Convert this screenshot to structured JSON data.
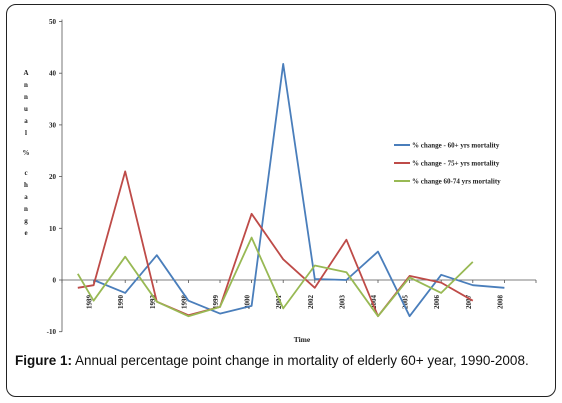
{
  "figure": {
    "caption_label": "Figure 1:",
    "caption_text": " Annual percentage point change in mortality of elderly 60+ year, 1990-2008."
  },
  "chart_data": {
    "type": "line",
    "title": "",
    "xlabel": "Time",
    "ylabel": "Annual % change",
    "ylim": [
      -10,
      50
    ],
    "yticks": [
      50,
      40,
      30,
      20,
      10,
      0,
      -10
    ],
    "x_tick_labels": [
      "1989",
      "1990",
      "1993",
      "1998",
      "1999",
      "2000",
      "2001",
      "2002",
      "2003",
      "2004",
      "2005",
      "2006",
      "2007",
      "2008"
    ],
    "legend_position": "right",
    "grid": false,
    "series": [
      {
        "name": "% change - 60+ yrs mortality",
        "color": "#4a7ebb",
        "x": [
          1,
          2,
          3,
          4,
          5,
          6,
          7,
          8,
          9,
          10,
          11,
          12,
          13,
          14,
          15
        ],
        "values": [
          0,
          -2.5,
          4.8,
          -4,
          -6.5,
          -5,
          41.8,
          0.2,
          0,
          5.5,
          -7,
          1,
          -1,
          -1.5,
          null
        ]
      },
      {
        "name": "% change - 75+ yrs mortality",
        "color": "#be4b48",
        "x": [
          0.5,
          1,
          2,
          3,
          4,
          5,
          6,
          7,
          8,
          9,
          10,
          11,
          12,
          13,
          14
        ],
        "values": [
          -1.5,
          -1,
          21,
          -4.2,
          -6.8,
          -5.2,
          12.8,
          4,
          -1.5,
          7.8,
          -7,
          0.8,
          -0.5,
          -4,
          null
        ]
      },
      {
        "name": "% change 60-74 yrs mortality",
        "color": "#98b954",
        "x": [
          0.5,
          1,
          2,
          3,
          4,
          5,
          6,
          7,
          8,
          9,
          10,
          11,
          12,
          13,
          14
        ],
        "values": [
          1.2,
          -4,
          4.5,
          -4.2,
          -7,
          -5.2,
          8.2,
          -5.5,
          2.8,
          1.5,
          -7,
          0.5,
          -2.5,
          3.5,
          null
        ]
      }
    ]
  }
}
